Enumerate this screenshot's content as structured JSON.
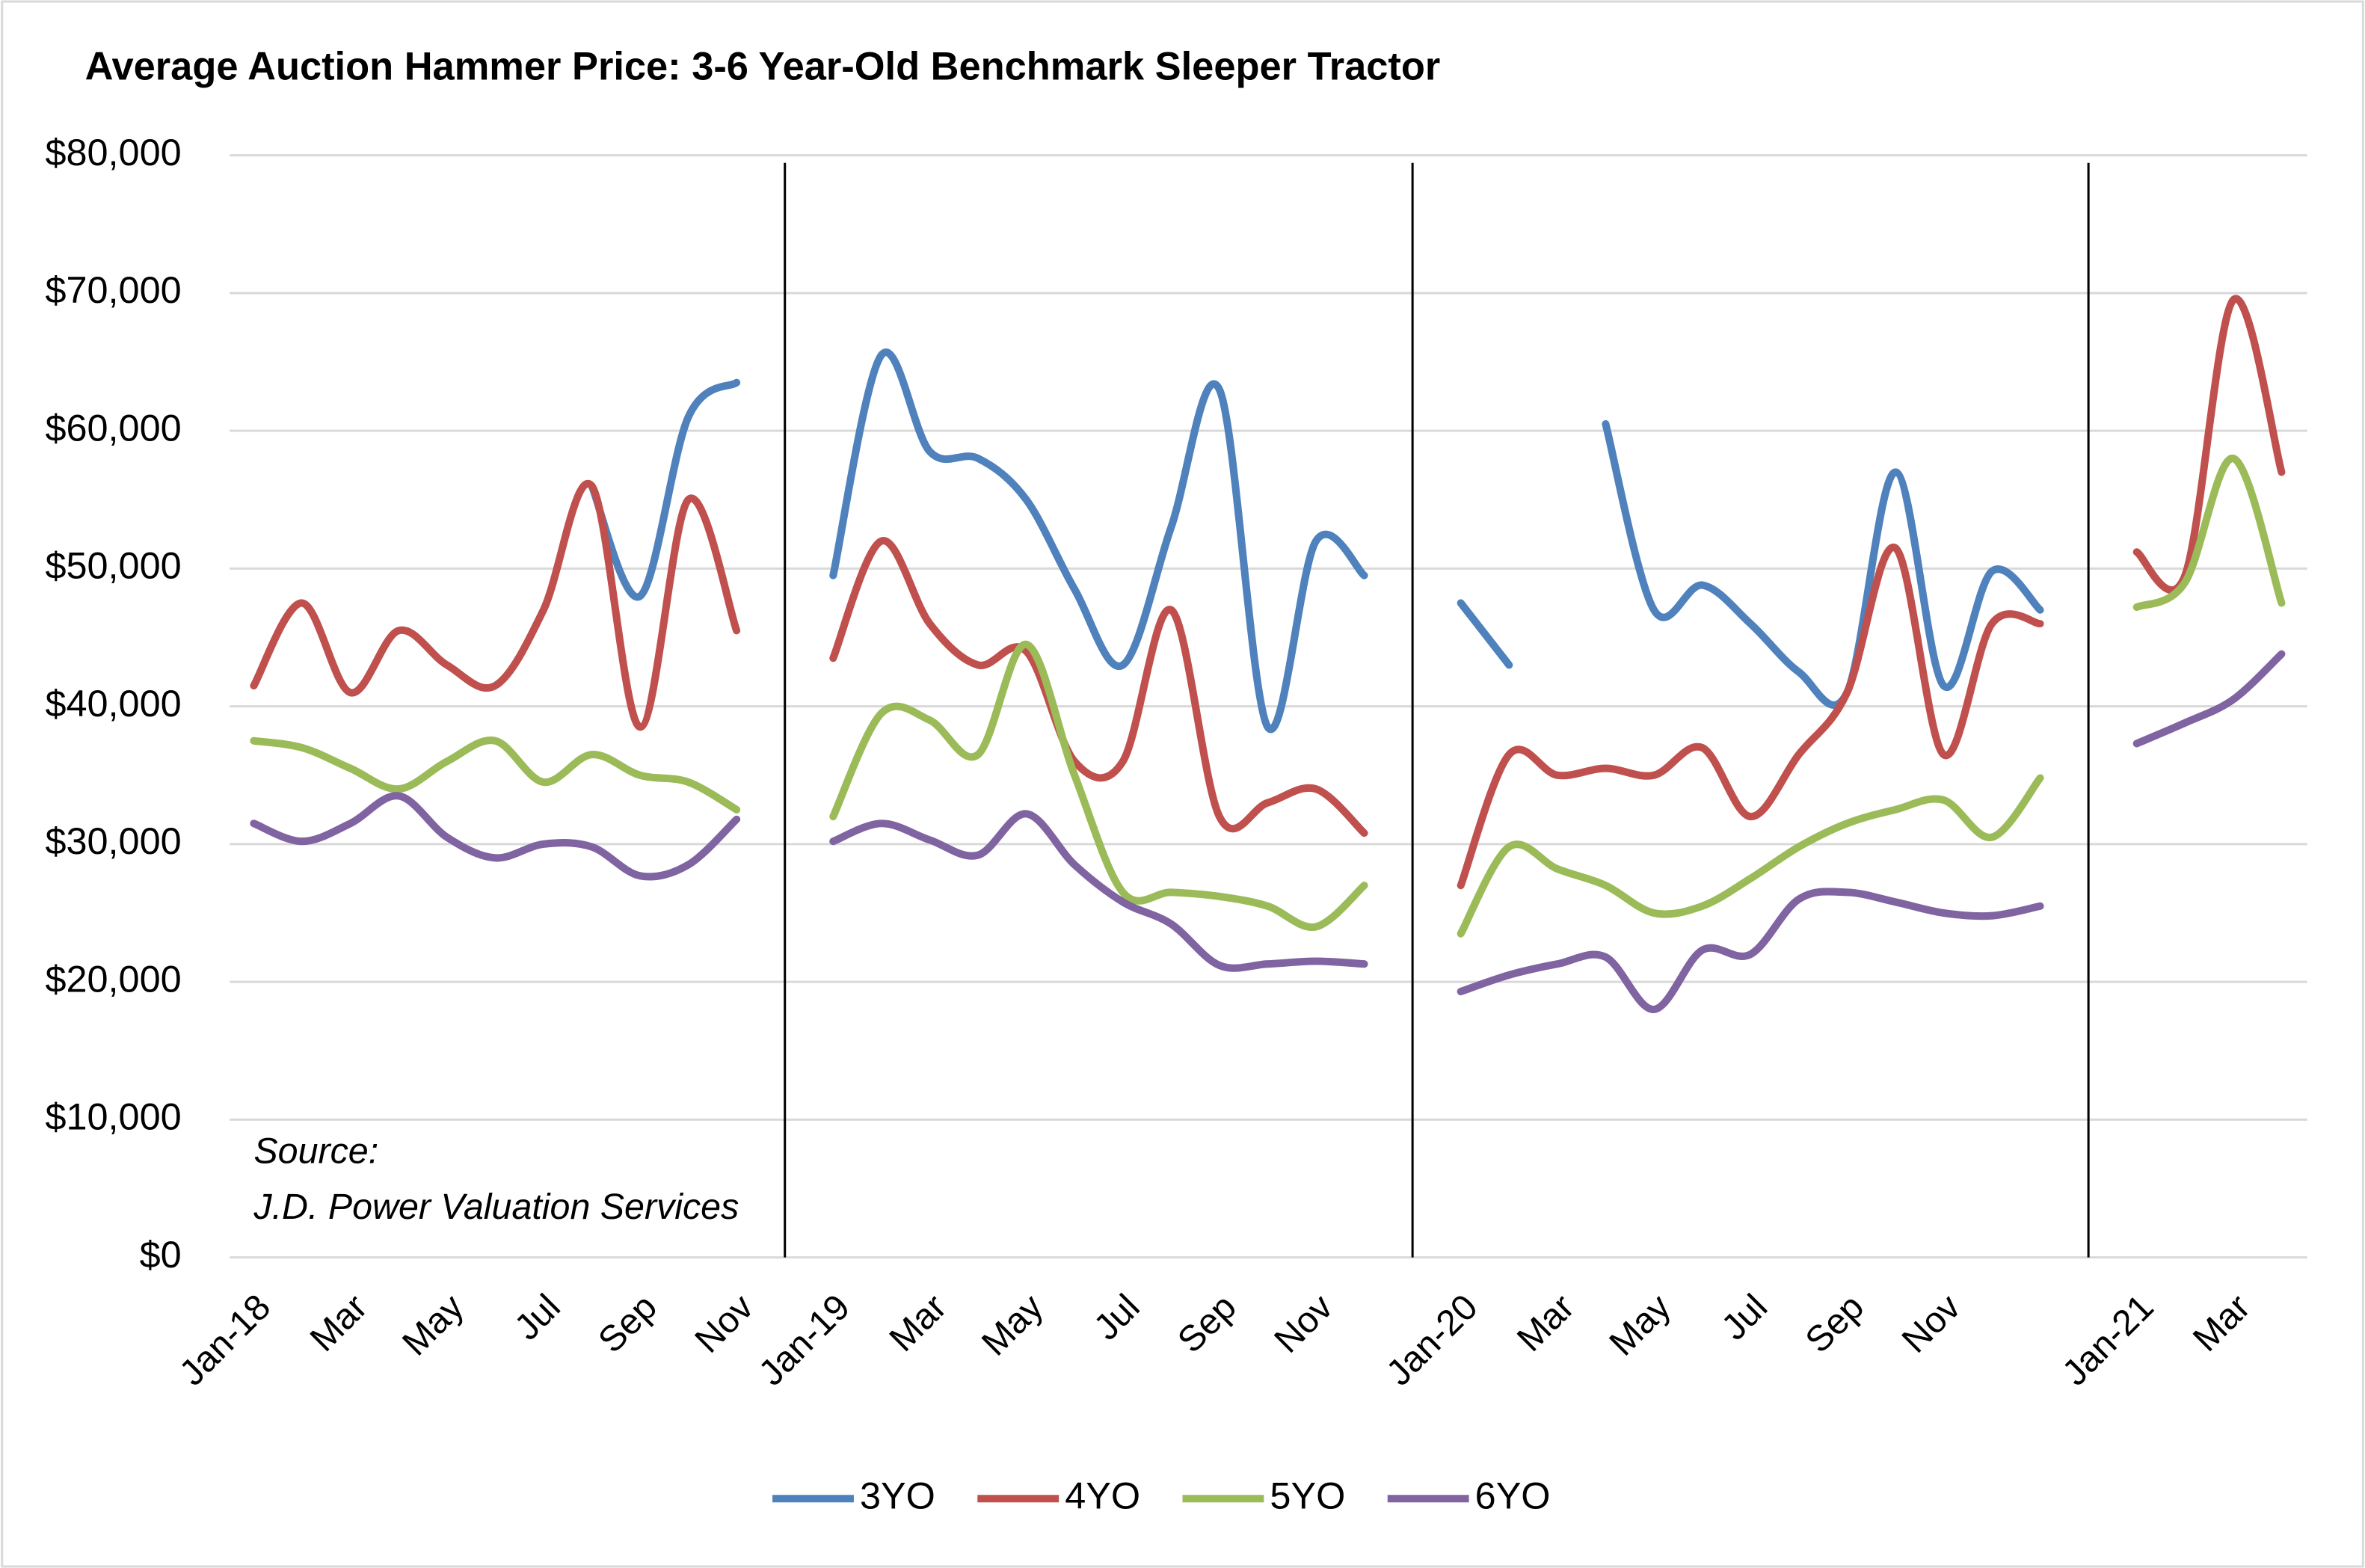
{
  "chart_data": {
    "type": "line",
    "title": "Average Auction Hammer Price: 3-6 Year-Old Benchmark Sleeper Tractor",
    "annotations": [
      "Source:",
      "J.D. Power Valuation Services"
    ],
    "categories": [
      "Jan-18",
      null,
      "Mar",
      null,
      "May",
      null,
      "Jul",
      null,
      "Sep",
      null,
      "Nov",
      null,
      "Jan-19",
      null,
      "Mar",
      null,
      "May",
      null,
      "Jul",
      null,
      "Sep",
      null,
      "Nov",
      null,
      null,
      "Jan-20",
      null,
      "Mar",
      null,
      "May",
      null,
      "Jul",
      null,
      "Sep",
      null,
      "Nov",
      null,
      null,
      null,
      "Jan-21",
      null,
      "Mar",
      null
    ],
    "series": [
      {
        "name": "3YO",
        "color": "#4f81bd",
        "values": [
          null,
          null,
          null,
          null,
          null,
          null,
          null,
          56000,
          48000,
          61000,
          63500,
          null,
          49500,
          65500,
          58500,
          58000,
          55000,
          48500,
          43000,
          53000,
          63000,
          38500,
          52000,
          49500,
          null,
          47500,
          43000,
          null,
          60500,
          47000,
          48800,
          46000,
          42500,
          41000,
          57000,
          41500,
          49800,
          47000,
          null,
          null,
          null,
          null,
          null
        ]
      },
      {
        "name": "4YO",
        "color": "#c0504d",
        "values": [
          41500,
          47500,
          41000,
          45500,
          43000,
          41500,
          47000,
          56000,
          38500,
          55000,
          45500,
          null,
          43500,
          52000,
          46000,
          43000,
          44000,
          36000,
          36000,
          47000,
          32000,
          33000,
          34000,
          30800,
          null,
          27000,
          36500,
          35000,
          35500,
          35000,
          37000,
          32000,
          36500,
          41000,
          51500,
          36500,
          46000,
          46000,
          null,
          51200,
          49500,
          69500,
          57000
        ]
      },
      {
        "name": "5YO",
        "color": "#9bbb59",
        "values": [
          37500,
          37000,
          35500,
          34000,
          36000,
          37500,
          34500,
          36500,
          35000,
          34500,
          32500,
          null,
          32000,
          39500,
          39000,
          36500,
          44500,
          35000,
          26500,
          26500,
          26200,
          25500,
          24000,
          27000,
          null,
          23500,
          29800,
          28200,
          27000,
          25000,
          25500,
          27500,
          29800,
          31500,
          32500,
          33200,
          30500,
          34800,
          null,
          47200,
          49000,
          58000,
          47500
        ]
      },
      {
        "name": "6YO",
        "color": "#8064a2",
        "values": [
          31500,
          30200,
          31500,
          33500,
          30500,
          29000,
          30000,
          29800,
          27700,
          28500,
          31800,
          null,
          30200,
          31500,
          30300,
          29200,
          32200,
          28500,
          25800,
          24200,
          21200,
          21300,
          21500,
          21300,
          null,
          19300,
          20500,
          21300,
          21800,
          18000,
          22300,
          22000,
          26000,
          26500,
          25800,
          25000,
          24800,
          25500,
          null,
          37300,
          38800,
          40500,
          43800
        ]
      }
    ],
    "ylim": [
      0,
      80000
    ],
    "yticks": [
      {
        "value": 0,
        "label": "$0"
      },
      {
        "value": 10000,
        "label": "$10,000"
      },
      {
        "value": 20000,
        "label": "$20,000"
      },
      {
        "value": 30000,
        "label": "$30,000"
      },
      {
        "value": 40000,
        "label": "$40,000"
      },
      {
        "value": 50000,
        "label": "$50,000"
      },
      {
        "value": 60000,
        "label": "$60,000"
      },
      {
        "value": 70000,
        "label": "$70,000"
      },
      {
        "value": 80000,
        "label": "$80,000"
      }
    ],
    "grid": true,
    "legend": "bottom"
  }
}
